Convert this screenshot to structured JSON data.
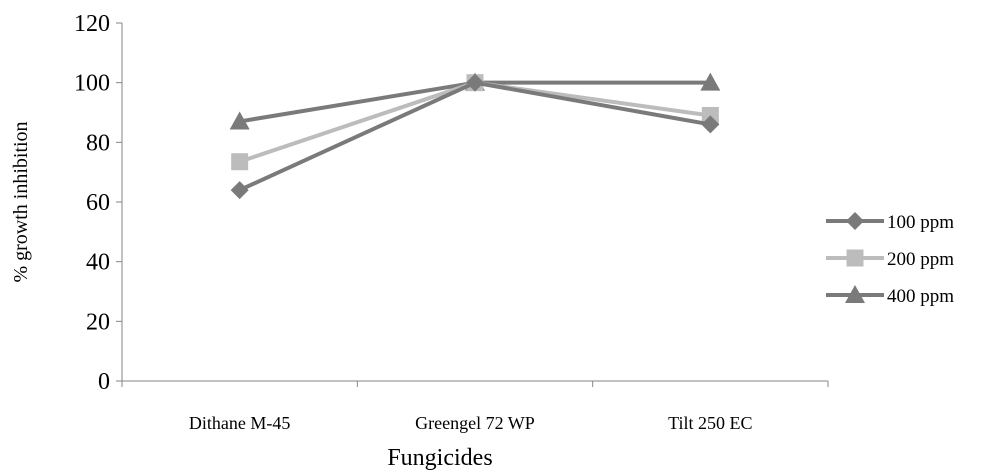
{
  "chart_data": {
    "type": "line",
    "categories": [
      "Dithane M-45",
      "Greengel 72 WP",
      "Tilt 250 EC"
    ],
    "series": [
      {
        "name": "100 ppm",
        "values": [
          64,
          100,
          86
        ],
        "marker": "diamond",
        "color": "#7a7a7a"
      },
      {
        "name": "200 ppm",
        "values": [
          73.5,
          100,
          89
        ],
        "marker": "square",
        "color": "#bcbcbc"
      },
      {
        "name": "400 ppm",
        "values": [
          87,
          100,
          100
        ],
        "marker": "triangle",
        "color": "#7a7a7a"
      }
    ],
    "xlabel": "Fungicides",
    "ylabel": "% growth inhibition",
    "ylim": [
      0,
      120
    ],
    "yticks": [
      "0",
      "20",
      "40",
      "60",
      "80",
      "100",
      "120"
    ],
    "grid": false,
    "legend_position": "right"
  }
}
